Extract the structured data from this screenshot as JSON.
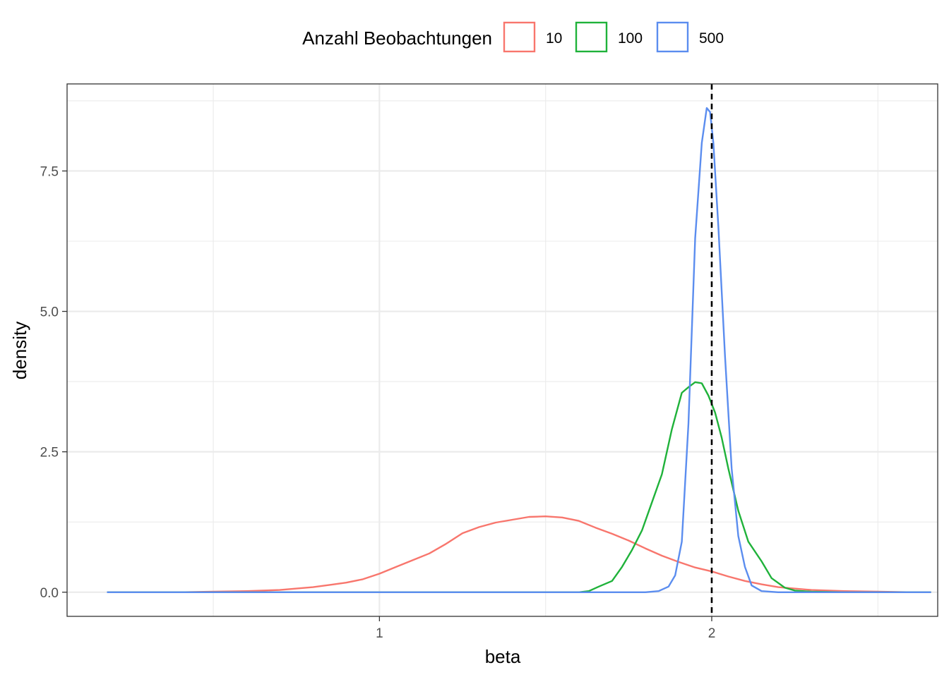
{
  "colors": {
    "series_10": "#F8766D",
    "series_100": "#1FB23A",
    "series_500": "#5B8DEF",
    "grid": "#ebebeb",
    "panel_border": "#333333",
    "reference_line": "#000000"
  },
  "chart_data": {
    "type": "line",
    "title": "",
    "xlabel": "beta",
    "ylabel": "density",
    "xlim": [
      0.06,
      2.68
    ],
    "ylim": [
      -0.43,
      9.05
    ],
    "x_ticks": [
      1,
      2
    ],
    "x_tick_labels": [
      "1",
      "2"
    ],
    "x_minor_ticks": [
      0.5,
      1.5,
      2.5
    ],
    "y_ticks": [
      0,
      2.5,
      5,
      7.5
    ],
    "y_tick_labels": [
      "0.0",
      "2.5",
      "5.0",
      "7.5"
    ],
    "y_minor_ticks": [
      1.25,
      3.75,
      6.25,
      8.75
    ],
    "grid": true,
    "reference_line": {
      "x": 2,
      "style": "dashed"
    },
    "legend": {
      "position": "top",
      "title": "Anzahl Beobachtungen"
    },
    "series": [
      {
        "name": "10",
        "color": "#F8766D",
        "points": [
          [
            0.18,
            0
          ],
          [
            0.4,
            0
          ],
          [
            0.5,
            0.01
          ],
          [
            0.6,
            0.02
          ],
          [
            0.7,
            0.04
          ],
          [
            0.8,
            0.09
          ],
          [
            0.85,
            0.13
          ],
          [
            0.9,
            0.17
          ],
          [
            0.95,
            0.23
          ],
          [
            1.0,
            0.33
          ],
          [
            1.05,
            0.45
          ],
          [
            1.1,
            0.57
          ],
          [
            1.15,
            0.69
          ],
          [
            1.2,
            0.86
          ],
          [
            1.25,
            1.05
          ],
          [
            1.3,
            1.16
          ],
          [
            1.35,
            1.24
          ],
          [
            1.4,
            1.29
          ],
          [
            1.45,
            1.34
          ],
          [
            1.5,
            1.35
          ],
          [
            1.55,
            1.33
          ],
          [
            1.6,
            1.27
          ],
          [
            1.65,
            1.15
          ],
          [
            1.7,
            1.04
          ],
          [
            1.75,
            0.92
          ],
          [
            1.8,
            0.78
          ],
          [
            1.85,
            0.65
          ],
          [
            1.9,
            0.54
          ],
          [
            1.95,
            0.44
          ],
          [
            2.0,
            0.37
          ],
          [
            2.05,
            0.28
          ],
          [
            2.1,
            0.2
          ],
          [
            2.15,
            0.14
          ],
          [
            2.2,
            0.09
          ],
          [
            2.3,
            0.04
          ],
          [
            2.4,
            0.02
          ],
          [
            2.5,
            0.01
          ],
          [
            2.6,
            0
          ],
          [
            2.66,
            0
          ]
        ]
      },
      {
        "name": "100",
        "color": "#1FB23A",
        "points": [
          [
            0.18,
            0
          ],
          [
            1.6,
            0
          ],
          [
            1.63,
            0.02
          ],
          [
            1.66,
            0.1
          ],
          [
            1.7,
            0.2
          ],
          [
            1.73,
            0.45
          ],
          [
            1.76,
            0.75
          ],
          [
            1.79,
            1.1
          ],
          [
            1.82,
            1.6
          ],
          [
            1.85,
            2.1
          ],
          [
            1.88,
            2.9
          ],
          [
            1.91,
            3.55
          ],
          [
            1.93,
            3.65
          ],
          [
            1.95,
            3.74
          ],
          [
            1.97,
            3.72
          ],
          [
            1.99,
            3.5
          ],
          [
            2.01,
            3.2
          ],
          [
            2.03,
            2.75
          ],
          [
            2.05,
            2.2
          ],
          [
            2.08,
            1.45
          ],
          [
            2.11,
            0.9
          ],
          [
            2.15,
            0.55
          ],
          [
            2.18,
            0.25
          ],
          [
            2.22,
            0.08
          ],
          [
            2.25,
            0.03
          ],
          [
            2.3,
            0.01
          ],
          [
            2.4,
            0
          ],
          [
            2.66,
            0
          ]
        ]
      },
      {
        "name": "500",
        "color": "#5B8DEF",
        "points": [
          [
            0.18,
            0
          ],
          [
            1.8,
            0
          ],
          [
            1.84,
            0.02
          ],
          [
            1.87,
            0.1
          ],
          [
            1.89,
            0.3
          ],
          [
            1.91,
            0.9
          ],
          [
            1.93,
            3.0
          ],
          [
            1.95,
            6.3
          ],
          [
            1.97,
            8.0
          ],
          [
            1.985,
            8.62
          ],
          [
            1.995,
            8.55
          ],
          [
            2.005,
            8.0
          ],
          [
            2.02,
            6.5
          ],
          [
            2.04,
            4.2
          ],
          [
            2.06,
            2.2
          ],
          [
            2.08,
            1.0
          ],
          [
            2.1,
            0.45
          ],
          [
            2.12,
            0.12
          ],
          [
            2.15,
            0.02
          ],
          [
            2.2,
            0
          ],
          [
            2.66,
            0
          ]
        ]
      }
    ]
  }
}
